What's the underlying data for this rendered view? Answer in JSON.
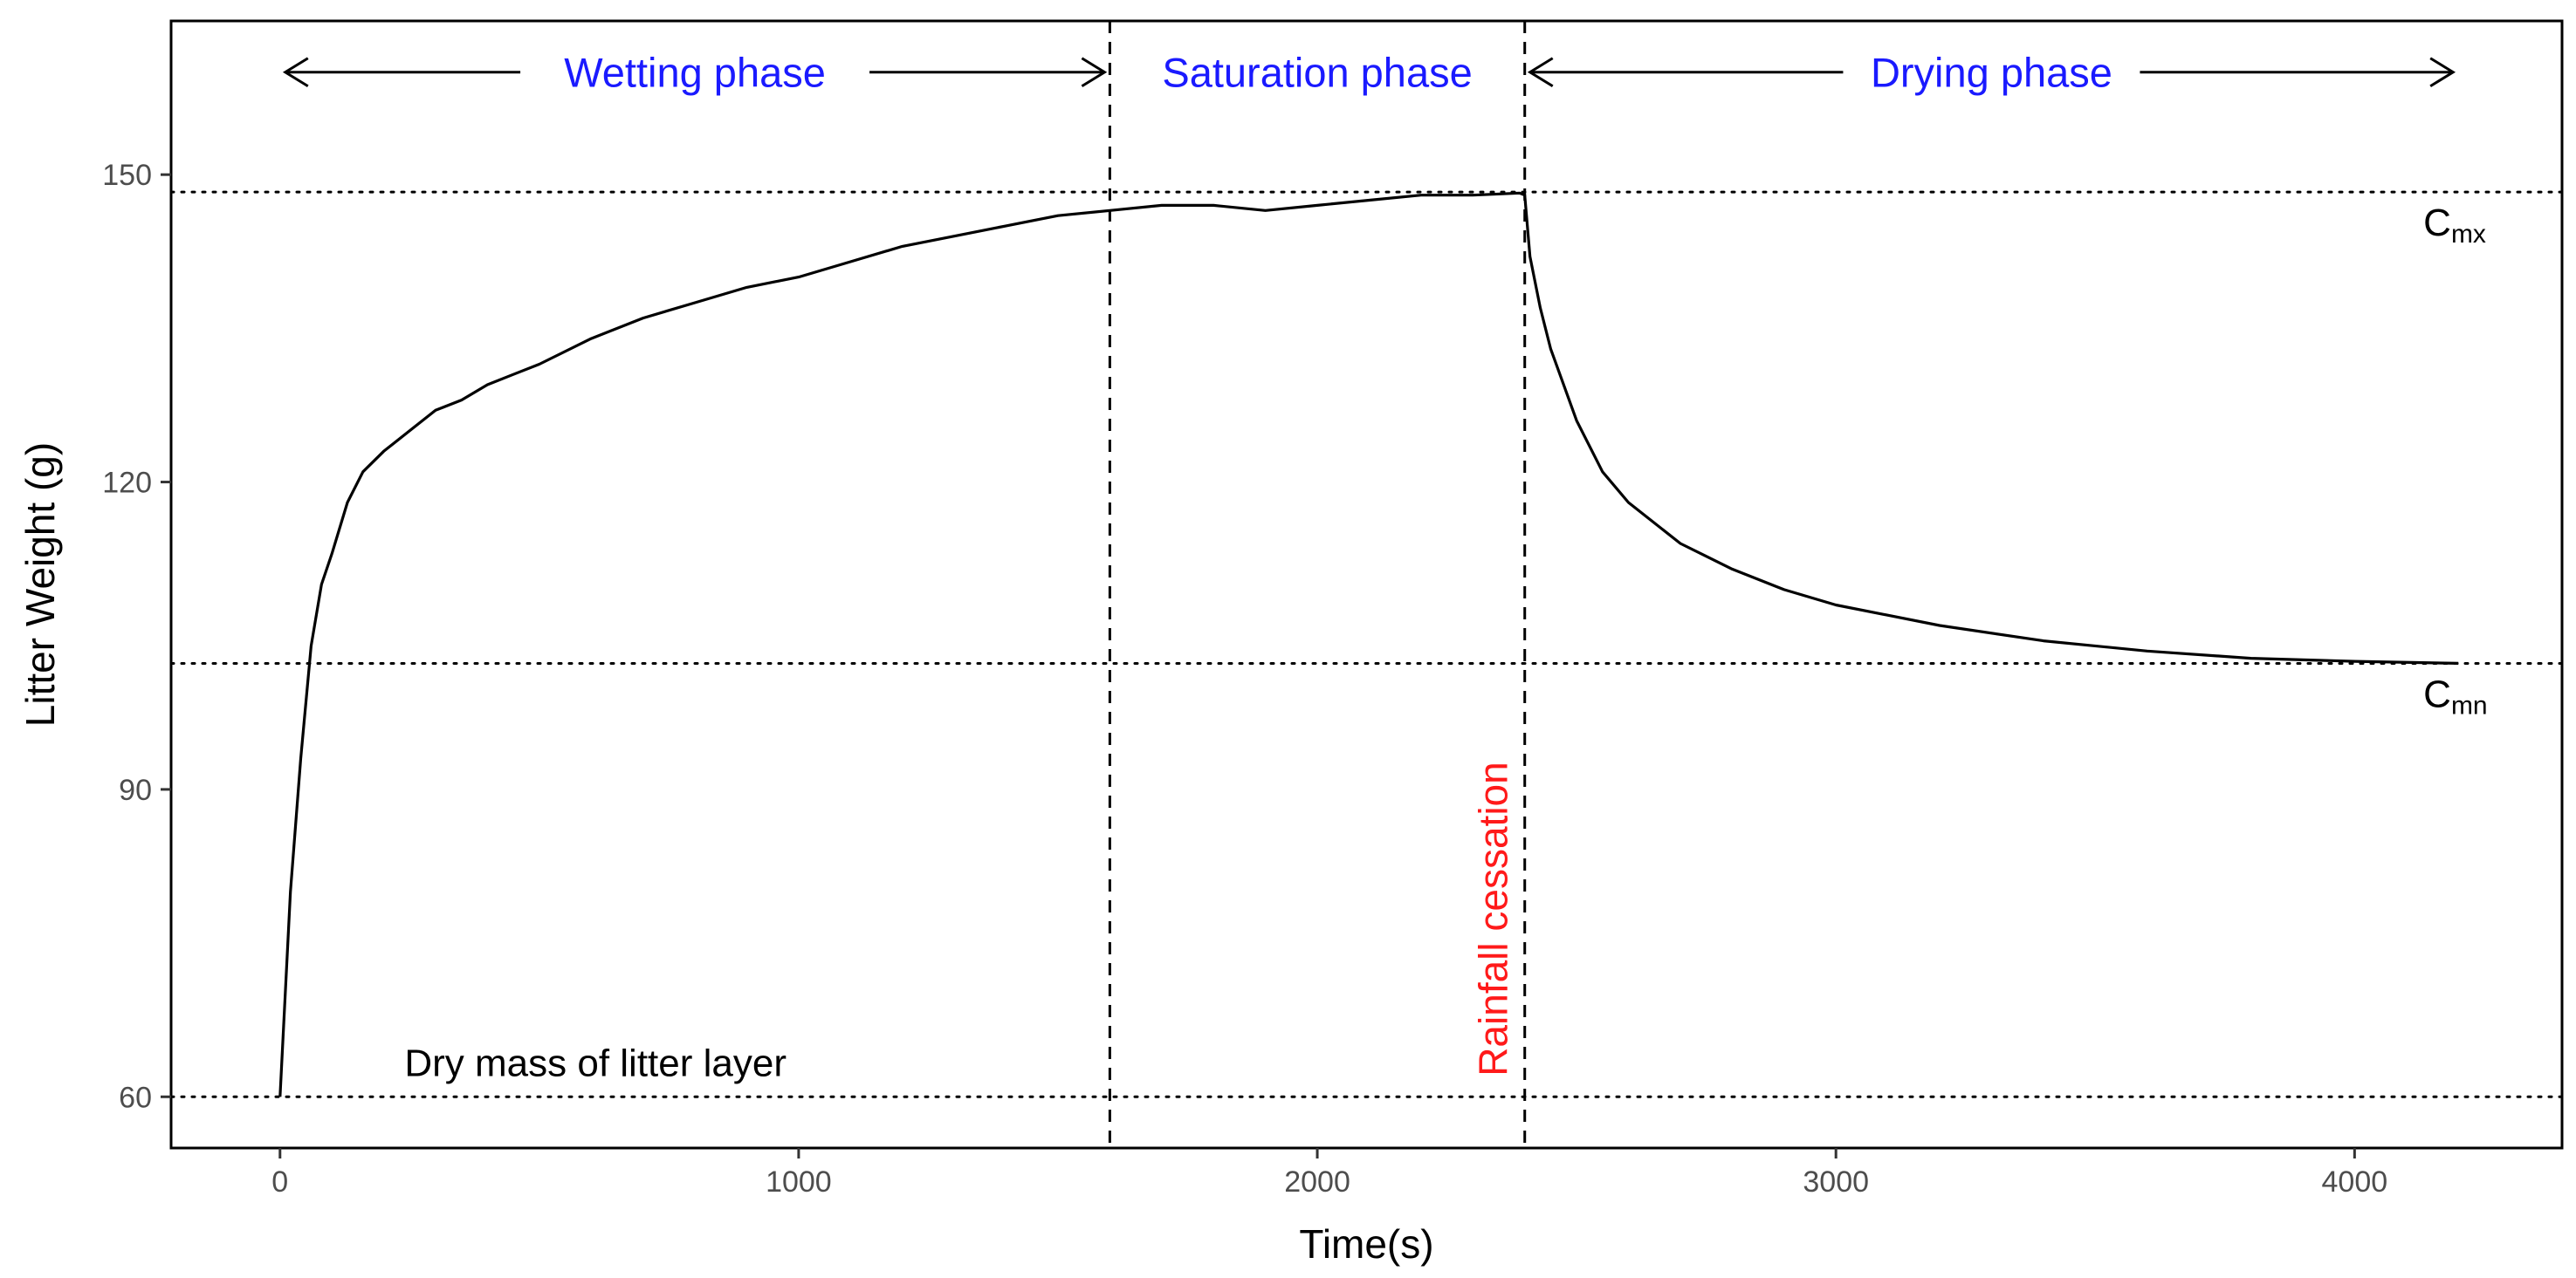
{
  "chart_data": {
    "type": "line",
    "title": "",
    "xlabel": "Time(s)",
    "ylabel": "Litter Weight (g)",
    "xlim": [
      -210,
      4400
    ],
    "ylim": [
      55,
      165
    ],
    "xticks": [
      0,
      1000,
      2000,
      3000,
      4000
    ],
    "yticks": [
      60,
      90,
      120,
      150
    ],
    "grid": false,
    "series": [
      {
        "name": "Litter weight",
        "x": [
          0,
          20,
          40,
          60,
          80,
          100,
          130,
          160,
          200,
          250,
          300,
          350,
          400,
          450,
          500,
          600,
          700,
          800,
          900,
          1000,
          1100,
          1200,
          1300,
          1400,
          1500,
          1600,
          1700,
          1800,
          1900,
          2000,
          2100,
          2200,
          2300,
          2390,
          2400,
          2410,
          2430,
          2450,
          2500,
          2550,
          2600,
          2700,
          2800,
          2900,
          3000,
          3200,
          3400,
          3600,
          3800,
          4000,
          4200
        ],
        "y": [
          60,
          80,
          93,
          104,
          110,
          113,
          118,
          121,
          123,
          125,
          127,
          128,
          129.5,
          130.5,
          131.5,
          134,
          136,
          137.5,
          139,
          140,
          141.5,
          143,
          144,
          145,
          146,
          146.5,
          147,
          147,
          146.5,
          147,
          147.5,
          148,
          148,
          148.2,
          148,
          142,
          137,
          133,
          126,
          121,
          118,
          114,
          111.5,
          109.5,
          108,
          106,
          104.5,
          103.5,
          102.8,
          102.5,
          102.3
        ]
      }
    ],
    "reference_lines": {
      "horizontal": [
        {
          "y": 148.3,
          "label": "C",
          "label_sub": "mx",
          "style": "dotted"
        },
        {
          "y": 102.3,
          "label": "C",
          "label_sub": "mn",
          "style": "dotted"
        },
        {
          "y": 60,
          "label": "Dry mass of litter layer",
          "style": "dotted"
        }
      ],
      "vertical": [
        {
          "x": 1600,
          "style": "dashed",
          "label": ""
        },
        {
          "x": 2400,
          "style": "dashed",
          "label": "Rainfall cessation",
          "label_color": "#ff1a1a"
        }
      ]
    },
    "phases": [
      {
        "label": "Wetting phase",
        "x_start": 0,
        "x_end": 1600
      },
      {
        "label": "Saturation phase",
        "x_start": 1600,
        "x_end": 2400
      },
      {
        "label": "Drying phase",
        "x_start": 2400,
        "x_end": 4200
      }
    ],
    "phase_label_y": 160,
    "colors": {
      "line": "#000000",
      "phase_label": "#1a1aff",
      "annotation_red": "#ff1a1a",
      "tick_label": "#4d4d4d"
    }
  }
}
